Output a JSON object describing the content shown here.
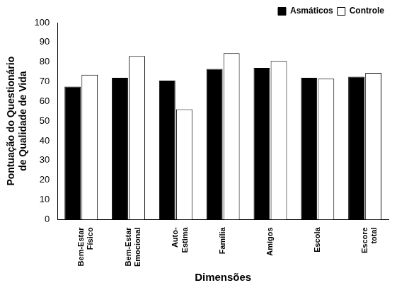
{
  "chart_data": {
    "type": "bar",
    "categories": [
      "Bem-Estar Físico",
      "Bem-Estar Emocional",
      "Auto- Estima",
      "Família",
      "Amigos",
      "Escola",
      "Escore total"
    ],
    "series": [
      {
        "name": "Asmáticos",
        "color": "#000000",
        "values": [
          67.5,
          72,
          70.5,
          76.5,
          77,
          72,
          72.5
        ]
      },
      {
        "name": "Controle",
        "color": "#ffffff",
        "values": [
          73.5,
          83,
          56,
          84.5,
          80.5,
          71.5,
          74.5
        ]
      }
    ],
    "x_label": "Dimensões",
    "y_label": "Pontuação do Questionário de Qualidade de Vida",
    "ylim": [
      0,
      100
    ],
    "yticks": [
      0,
      10,
      20,
      30,
      40,
      50,
      60,
      70,
      80,
      90,
      100
    ],
    "grid": false,
    "legend": "top-right"
  }
}
